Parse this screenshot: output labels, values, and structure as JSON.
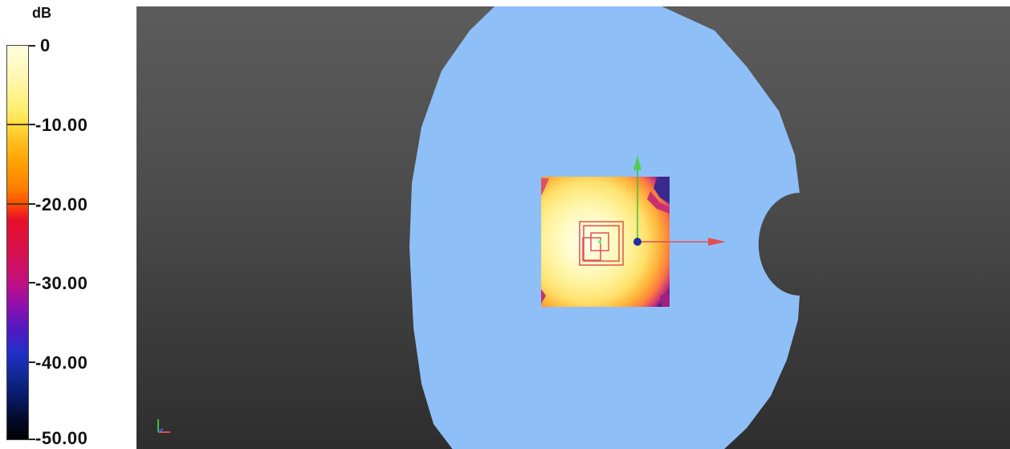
{
  "legend": {
    "unit": "dB",
    "labels": [
      "0",
      "-10.00",
      "-20.00",
      "-30.00",
      "-40.00",
      "-50.00"
    ]
  },
  "colors": {
    "dome": "#8fbff7",
    "axis_x": "#e05050",
    "axis_y": "#40c040",
    "origin": "#2030a0"
  }
}
